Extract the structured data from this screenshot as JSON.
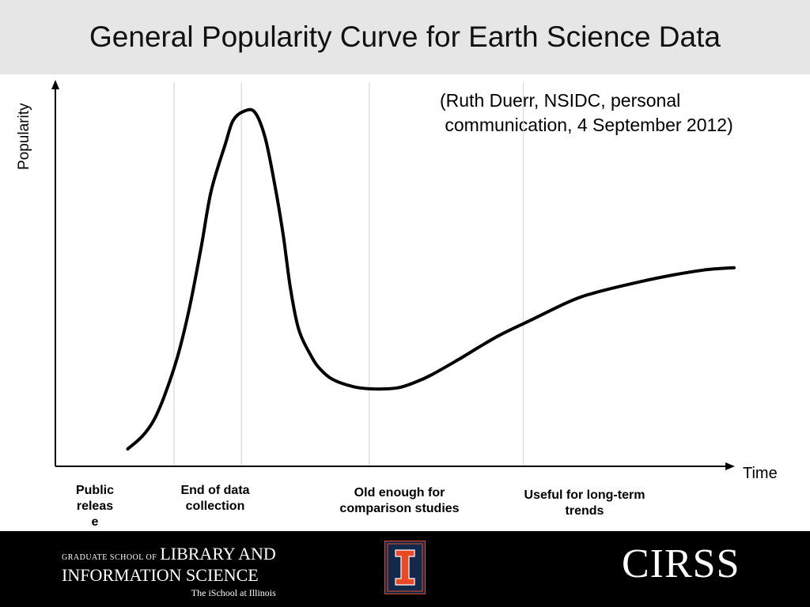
{
  "slide": {
    "title": "General Popularity Curve for Earth Science Data",
    "citation_line1": "(Ruth Duerr, NSIDC, personal",
    "citation_line2": " communication, 4 September 2012)"
  },
  "chart_data": {
    "type": "line",
    "title": "General Popularity Curve for Earth Science Data",
    "xlabel": "Time",
    "ylabel": "Popularity",
    "xlim": [
      0,
      100
    ],
    "ylim": [
      0,
      100
    ],
    "grid": false,
    "ticks": "none",
    "series": [
      {
        "values_x": [
          5.6,
          7.9,
          9.7,
          11.3,
          13.4,
          15.3,
          17.1,
          18.6,
          20.8,
          22.0,
          23.7,
          25.4,
          27.0,
          28.5,
          29.8,
          30.9,
          32.2,
          34.2,
          35.6,
          37.5,
          40.7,
          43.2,
          46.1,
          48.0,
          50.4,
          52.9,
          57.0,
          60.3,
          63.6,
          68.1,
          74.4,
          78.5,
          85.4,
          90.7,
          95.5,
          98.1,
          100.0
        ],
        "values_y": [
          0.0,
          3.7,
          8.4,
          15.2,
          26.8,
          41.3,
          58.7,
          74.2,
          87.7,
          94.4,
          97.1,
          96.8,
          89.5,
          75.9,
          61.6,
          46.6,
          34.5,
          26.6,
          22.9,
          20.0,
          17.9,
          17.3,
          17.3,
          17.7,
          19.2,
          21.3,
          25.6,
          29.3,
          32.8,
          36.8,
          42.4,
          45.0,
          48.1,
          50.1,
          51.5,
          51.9,
          52.1
        ]
      }
    ],
    "phases": [
      {
        "x": 12.8,
        "label_lines": [
          "Public",
          "releas",
          "e"
        ]
      },
      {
        "x": 23.3,
        "label_lines": [
          "End of data",
          "collection"
        ]
      },
      {
        "x": 43.2,
        "label_lines": [
          "Old enough for",
          "comparison studies"
        ]
      },
      {
        "x": 67.2,
        "label_lines": [
          "Useful for long-term",
          "trends"
        ]
      }
    ]
  },
  "footer": {
    "gslis_small": "GRADUATE SCHOOL OF",
    "gslis_big1": "LIBRARY AND",
    "gslis_big2": "INFORMATION SCIENCE",
    "gslis_sub": "The iSchool at Illinois",
    "cirss": "CIRSS",
    "colors": {
      "background": "#000000",
      "illinois_blue": "#13294b",
      "illinois_orange": "#e84a27"
    }
  }
}
